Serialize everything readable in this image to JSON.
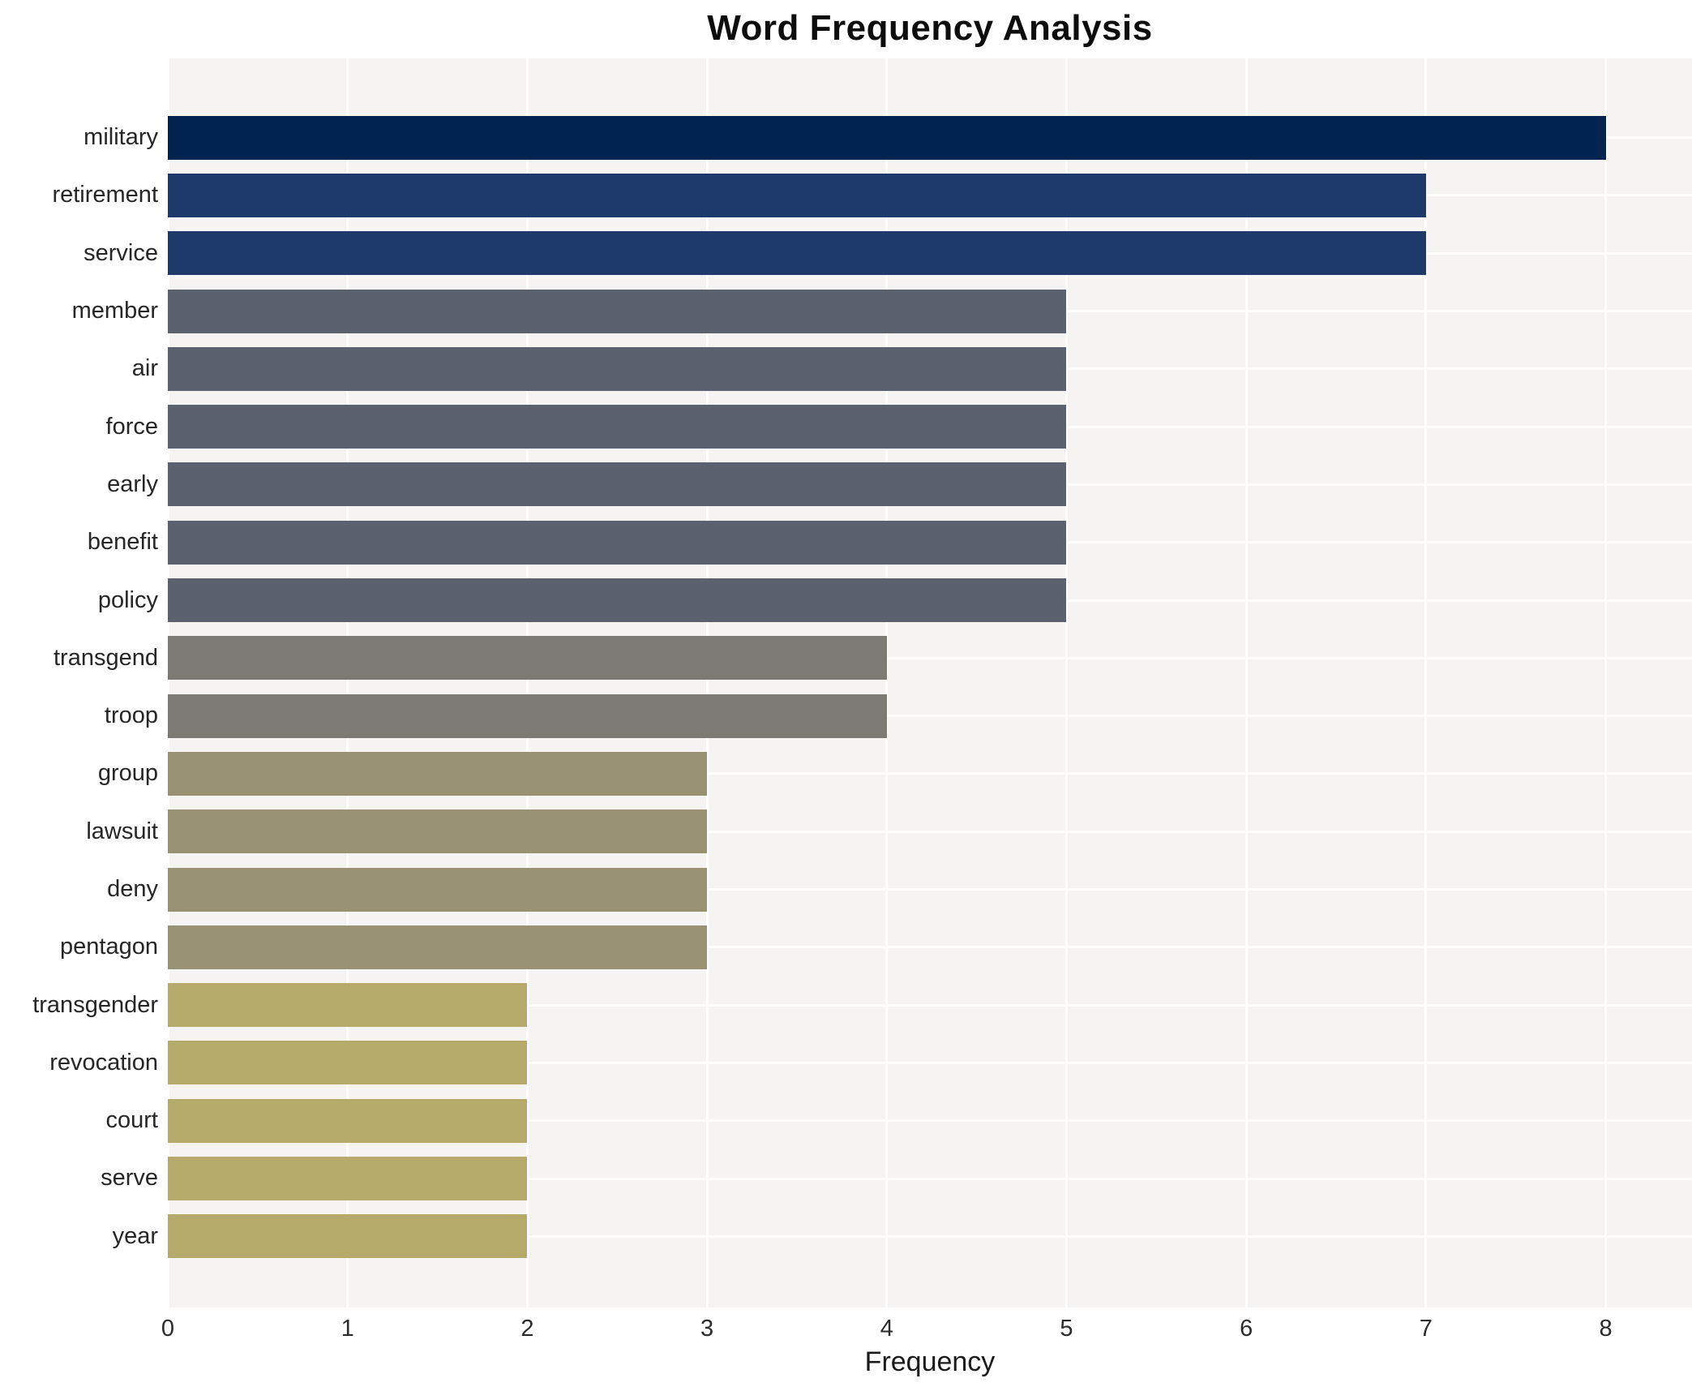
{
  "chart_data": {
    "type": "bar",
    "orientation": "horizontal",
    "title": "Word Frequency Analysis",
    "xlabel": "Frequency",
    "ylabel": "",
    "categories": [
      "military",
      "retirement",
      "service",
      "member",
      "air",
      "force",
      "early",
      "benefit",
      "policy",
      "transgend",
      "troop",
      "group",
      "lawsuit",
      "deny",
      "pentagon",
      "transgender",
      "revocation",
      "court",
      "serve",
      "year"
    ],
    "values": [
      8,
      7,
      7,
      5,
      5,
      5,
      5,
      5,
      5,
      4,
      4,
      3,
      3,
      3,
      3,
      2,
      2,
      2,
      2,
      2
    ],
    "bar_colors": [
      "#00234f",
      "#1e3a6d",
      "#1e3a6d",
      "#5c6170",
      "#5c6170",
      "#5c6170",
      "#5c6170",
      "#5c6170",
      "#5c6170",
      "#7b7a75",
      "#7b7a75",
      "#999272",
      "#999272",
      "#999272",
      "#999272",
      "#b6aa6a",
      "#b6aa6a",
      "#b6aa6a",
      "#b6aa6a",
      "#b6aa6a"
    ],
    "xlim": [
      0,
      8.48
    ],
    "xticks": [
      "0",
      "1",
      "2",
      "3",
      "4",
      "5",
      "6",
      "7",
      "8"
    ],
    "grid": true,
    "legend_position": "none",
    "plot_background": "#f5f4f2",
    "gridline_color": "#ffffff",
    "page_background": "#ffffff"
  }
}
